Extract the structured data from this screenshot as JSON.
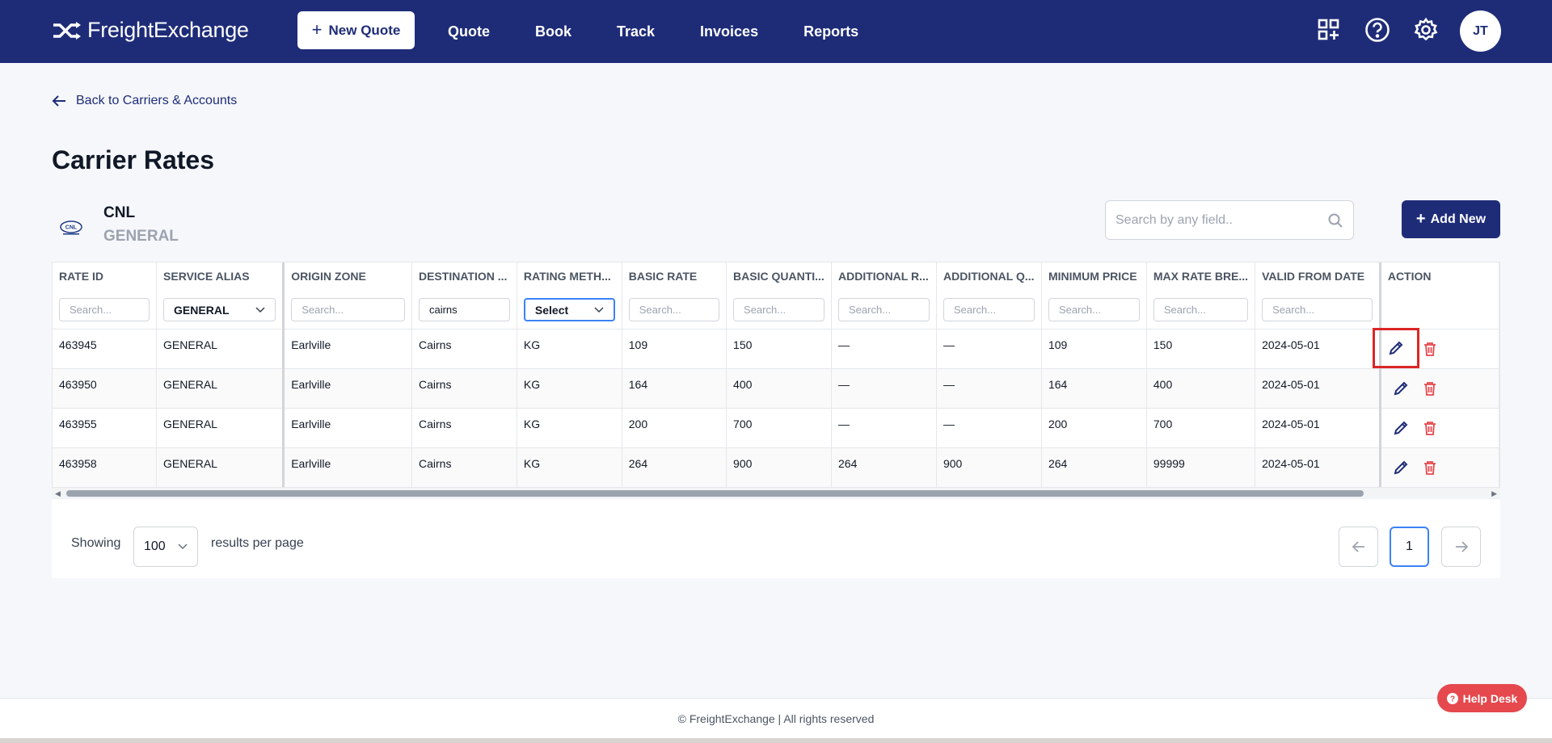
{
  "nav": {
    "brand": "FreightExchange",
    "new_quote_label": "New Quote",
    "links": [
      "Quote",
      "Book",
      "Track",
      "Invoices",
      "Reports"
    ],
    "avatar_initials": "JT",
    "icons": [
      "grid-add-icon",
      "help-icon",
      "settings-icon"
    ]
  },
  "back_link": "Back to Carriers & Accounts",
  "page_title": "Carrier Rates",
  "carrier": {
    "name": "CNL",
    "service": "GENERAL",
    "logo_text": "CNL"
  },
  "search": {
    "placeholder": "Search by any field.."
  },
  "add_new_label": "Add New",
  "table": {
    "columns": [
      "RATE ID",
      "SERVICE ALIAS",
      "ORIGIN ZONE",
      "DESTINATION ...",
      "RATING METH...",
      "BASIC RATE",
      "BASIC QUANTI...",
      "ADDITIONAL R...",
      "ADDITIONAL Q...",
      "MINIMUM PRICE",
      "MAX RATE BRE...",
      "VALID FROM DATE",
      "ACTION"
    ],
    "filters": {
      "placeholder": "Search...",
      "service_alias": "GENERAL",
      "destination": "cairns",
      "rating_method": "Select"
    },
    "rows": [
      [
        "463945",
        "GENERAL",
        "Earlville",
        "Cairns",
        "KG",
        "109",
        "150",
        "—",
        "—",
        "109",
        "150",
        "2024-05-01"
      ],
      [
        "463950",
        "GENERAL",
        "Earlville",
        "Cairns",
        "KG",
        "164",
        "400",
        "—",
        "—",
        "164",
        "400",
        "2024-05-01"
      ],
      [
        "463955",
        "GENERAL",
        "Earlville",
        "Cairns",
        "KG",
        "200",
        "700",
        "—",
        "—",
        "200",
        "700",
        "2024-05-01"
      ],
      [
        "463958",
        "GENERAL",
        "Earlville",
        "Cairns",
        "KG",
        "264",
        "900",
        "264",
        "900",
        "264",
        "99999",
        "2024-05-01"
      ]
    ]
  },
  "pagination": {
    "showing_label": "Showing",
    "per_page": "100",
    "results_label": "results per page",
    "current_page": "1"
  },
  "footer": "© FreightExchange | All rights reserved",
  "help_desk": "Help Desk",
  "colors": {
    "primary": "#1e2c78",
    "danger": "#e5484d",
    "highlight": "#dc2626",
    "focus": "#3b82f6"
  }
}
